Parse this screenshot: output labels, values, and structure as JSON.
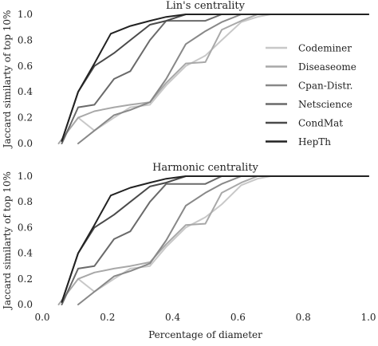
{
  "chart_data": [
    {
      "type": "line",
      "title": "Lin's centrality",
      "xlabel": "",
      "ylabel": "Jaccard similarty of top 10%",
      "xlim": [
        0.0,
        1.0
      ],
      "ylim": [
        0.0,
        1.0
      ],
      "xticks": [
        "0.0",
        "0.2",
        "0.4",
        "0.6",
        "0.8",
        "1.0"
      ],
      "yticks": [
        "0.0",
        "0.2",
        "0.4",
        "0.6",
        "0.8",
        "1.0"
      ],
      "grid": false,
      "legend": "right",
      "series": [
        {
          "name": "Codeminer",
          "color": "#c8c8c8",
          "x": [
            0.11,
            0.16,
            0.22,
            0.27,
            0.33,
            0.38,
            0.44,
            0.5,
            0.55,
            0.61,
            0.66,
            0.7,
            0.8,
            1.0
          ],
          "y": [
            0.2,
            0.1,
            0.2,
            0.28,
            0.3,
            0.45,
            0.6,
            0.68,
            0.8,
            0.94,
            0.98,
            1.0,
            1.0,
            1.0
          ]
        },
        {
          "name": "Diseaseome",
          "color": "#a8a8a8",
          "x": [
            0.05,
            0.11,
            0.16,
            0.22,
            0.27,
            0.33,
            0.38,
            0.44,
            0.5,
            0.55,
            0.61,
            0.66,
            0.7,
            1.0
          ],
          "y": [
            0.0,
            0.2,
            0.25,
            0.28,
            0.3,
            0.32,
            0.47,
            0.62,
            0.63,
            0.88,
            0.95,
            1.0,
            1.0,
            1.0
          ]
        },
        {
          "name": "Cpan-Distr.",
          "color": "#888888",
          "x": [
            0.11,
            0.16,
            0.22,
            0.27,
            0.33,
            0.38,
            0.44,
            0.5,
            0.55,
            0.61,
            0.66,
            1.0
          ],
          "y": [
            0.0,
            0.1,
            0.22,
            0.26,
            0.32,
            0.5,
            0.77,
            0.87,
            0.94,
            1.0,
            1.0,
            1.0
          ]
        },
        {
          "name": "Netscience",
          "color": "#6a6a6a",
          "x": [
            0.06,
            0.11,
            0.16,
            0.22,
            0.27,
            0.33,
            0.38,
            0.44,
            0.5,
            0.55,
            0.6,
            1.0
          ],
          "y": [
            0.0,
            0.28,
            0.3,
            0.5,
            0.56,
            0.8,
            0.95,
            0.95,
            0.95,
            1.0,
            1.0,
            1.0
          ]
        },
        {
          "name": "CondMat",
          "color": "#4a4a4a",
          "x": [
            0.06,
            0.11,
            0.16,
            0.22,
            0.27,
            0.33,
            0.38,
            0.44,
            0.5,
            0.6,
            1.0
          ],
          "y": [
            0.02,
            0.4,
            0.6,
            0.7,
            0.8,
            0.92,
            0.95,
            1.0,
            1.0,
            1.0,
            1.0
          ]
        },
        {
          "name": "HepTh",
          "color": "#222222",
          "x": [
            0.06,
            0.11,
            0.16,
            0.21,
            0.27,
            0.33,
            0.38,
            0.44,
            0.5,
            0.6,
            1.0
          ],
          "y": [
            0.02,
            0.4,
            0.62,
            0.85,
            0.91,
            0.95,
            0.98,
            1.0,
            1.0,
            1.0,
            1.0
          ]
        }
      ]
    },
    {
      "type": "line",
      "title": "Harmonic centrality",
      "xlabel": "Percentage of diameter",
      "ylabel": "Jaccard similarty of top 10%",
      "xlim": [
        0.0,
        1.0
      ],
      "ylim": [
        0.0,
        1.0
      ],
      "xticks": [
        "0.0",
        "0.2",
        "0.4",
        "0.6",
        "0.8",
        "1.0"
      ],
      "yticks": [
        "0.0",
        "0.2",
        "0.4",
        "0.6",
        "0.8",
        "1.0"
      ],
      "grid": false,
      "series": [
        {
          "name": "Codeminer",
          "color": "#c8c8c8",
          "x": [
            0.11,
            0.16,
            0.22,
            0.27,
            0.33,
            0.38,
            0.44,
            0.5,
            0.55,
            0.61,
            0.66,
            0.7,
            0.8,
            1.0
          ],
          "y": [
            0.2,
            0.1,
            0.2,
            0.28,
            0.3,
            0.45,
            0.6,
            0.68,
            0.78,
            0.93,
            0.98,
            1.0,
            1.0,
            1.0
          ]
        },
        {
          "name": "Diseaseome",
          "color": "#a8a8a8",
          "x": [
            0.05,
            0.11,
            0.16,
            0.22,
            0.27,
            0.33,
            0.38,
            0.44,
            0.5,
            0.55,
            0.61,
            0.66,
            0.7,
            1.0
          ],
          "y": [
            0.0,
            0.2,
            0.25,
            0.28,
            0.3,
            0.33,
            0.47,
            0.62,
            0.63,
            0.87,
            0.95,
            1.0,
            1.0,
            1.0
          ]
        },
        {
          "name": "Cpan-Distr.",
          "color": "#888888",
          "x": [
            0.11,
            0.16,
            0.22,
            0.27,
            0.33,
            0.38,
            0.44,
            0.5,
            0.55,
            0.61,
            0.66,
            1.0
          ],
          "y": [
            0.0,
            0.1,
            0.22,
            0.26,
            0.32,
            0.5,
            0.77,
            0.87,
            0.94,
            1.0,
            1.0,
            1.0
          ]
        },
        {
          "name": "Netscience",
          "color": "#6a6a6a",
          "x": [
            0.06,
            0.11,
            0.16,
            0.22,
            0.27,
            0.33,
            0.38,
            0.44,
            0.5,
            0.55,
            0.6,
            1.0
          ],
          "y": [
            0.0,
            0.28,
            0.3,
            0.51,
            0.57,
            0.8,
            0.94,
            0.94,
            0.94,
            1.0,
            1.0,
            1.0
          ]
        },
        {
          "name": "CondMat",
          "color": "#4a4a4a",
          "x": [
            0.06,
            0.11,
            0.16,
            0.22,
            0.27,
            0.33,
            0.38,
            0.44,
            0.5,
            0.6,
            1.0
          ],
          "y": [
            0.02,
            0.4,
            0.6,
            0.7,
            0.8,
            0.92,
            0.95,
            1.0,
            1.0,
            1.0,
            1.0
          ]
        },
        {
          "name": "HepTh",
          "color": "#222222",
          "x": [
            0.06,
            0.11,
            0.16,
            0.21,
            0.27,
            0.33,
            0.38,
            0.44,
            0.5,
            0.6,
            1.0
          ],
          "y": [
            0.02,
            0.4,
            0.62,
            0.85,
            0.91,
            0.95,
            0.98,
            1.0,
            1.0,
            1.0,
            1.0
          ]
        }
      ]
    }
  ]
}
